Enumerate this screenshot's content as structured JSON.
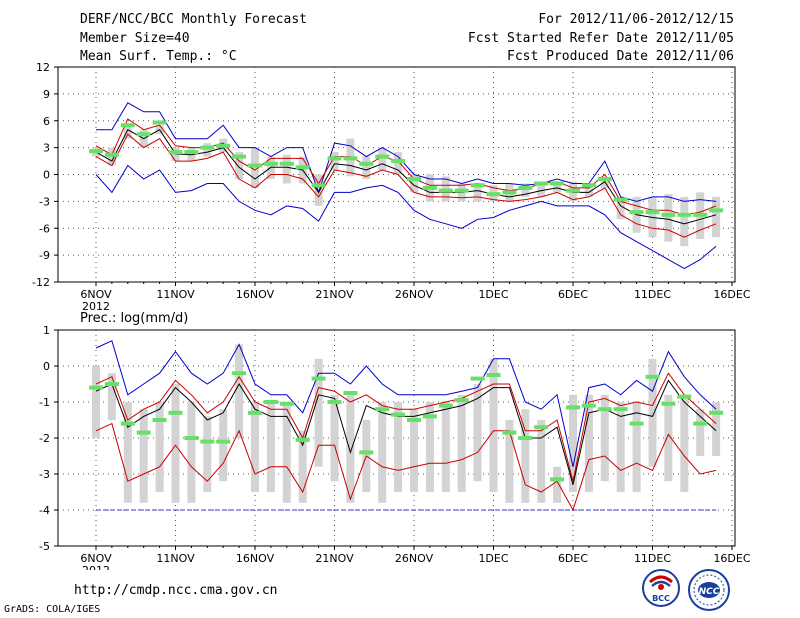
{
  "header": {
    "title": "DERF/NCC/BCC Monthly Forecast",
    "member_size": "Member Size=40",
    "variable": "Mean Surf. Temp.: °C",
    "period": "For 2012/11/06-2012/12/15",
    "fcst_started": "Fcst Started Refer Date 2012/11/05",
    "fcst_produced": "Fcst Produced Date 2012/11/06"
  },
  "colors": {
    "envelope": "#0000cc",
    "spread": "#cc0000",
    "mean": "#000000",
    "box": "#d3d3d3",
    "marker": "#66e066",
    "baseline": "#3333cc",
    "grid": "#555555"
  },
  "footer": {
    "url": "http://cmdp.ncc.cma.gov.cn",
    "credit": "GrADS: COLA/IGES",
    "logo_bcc": "BCC",
    "logo_ncc": "NCC"
  },
  "chart_data": [
    {
      "type": "line",
      "title": "Mean Surf. Temp.: °C",
      "ylim": [
        -12,
        12
      ],
      "yticks": [
        12,
        9,
        6,
        3,
        0,
        -3,
        -6,
        -9,
        -12
      ],
      "xticks": [
        "6NOV",
        "11NOV",
        "16NOV",
        "21NOV",
        "26NOV",
        "1DEC",
        "6DEC",
        "11DEC",
        "16DEC"
      ],
      "xtick_days": [
        0,
        5,
        10,
        15,
        20,
        25,
        30,
        35,
        40
      ],
      "year_label": "2012",
      "days": [
        0,
        1,
        2,
        3,
        4,
        5,
        6,
        7,
        8,
        9,
        10,
        11,
        12,
        13,
        14,
        15,
        16,
        17,
        18,
        19,
        20,
        21,
        22,
        23,
        24,
        25,
        26,
        27,
        28,
        29,
        30,
        31,
        32,
        33,
        34,
        35,
        36,
        37,
        38,
        39
      ],
      "series": [
        {
          "name": "max",
          "role": "envelope",
          "values": [
            5,
            5,
            8,
            7,
            7,
            4,
            4,
            4,
            5.5,
            3,
            3,
            2,
            3,
            3,
            -2,
            3.5,
            3.2,
            2,
            3,
            2,
            0,
            -0.5,
            -0.5,
            -1,
            -0.5,
            -1,
            -1,
            -1.2,
            -1,
            -0.5,
            -1,
            -1,
            1.5,
            -2.5,
            -3,
            -2.5,
            -2.5,
            -3,
            -2.8,
            -3
          ]
        },
        {
          "name": "upper",
          "role": "spread",
          "values": [
            3.2,
            2.2,
            6.2,
            5,
            5.5,
            3.2,
            3,
            3,
            3.5,
            1.5,
            0.5,
            1.8,
            1.8,
            1.8,
            -1,
            2,
            2,
            1,
            2,
            1.5,
            -0.5,
            -1.2,
            -1.2,
            -1.2,
            -1,
            -1.5,
            -1.8,
            -1.6,
            -1,
            -0.8,
            -1.5,
            -1.5,
            0,
            -3,
            -3.5,
            -4,
            -4,
            -4.5,
            -4.2,
            -3.5
          ]
        },
        {
          "name": "mean",
          "role": "mean",
          "values": [
            2.5,
            1.5,
            5,
            4,
            5,
            2.3,
            2.2,
            2.5,
            3,
            0.8,
            -0.5,
            0.8,
            0.8,
            0.5,
            -2,
            1.2,
            1,
            0.5,
            1.2,
            0.5,
            -1.2,
            -2,
            -2,
            -2,
            -1.8,
            -2.2,
            -2.5,
            -2.2,
            -1.8,
            -1.5,
            -2,
            -2,
            -0.8,
            -3.5,
            -4.5,
            -4.8,
            -5,
            -5.5,
            -5,
            -4.5
          ]
        },
        {
          "name": "lower",
          "role": "spread",
          "values": [
            2,
            1,
            4.5,
            3,
            4,
            1.5,
            1.5,
            1.8,
            2.5,
            -0.5,
            -1.5,
            0,
            0,
            -0.5,
            -2.5,
            0.5,
            0.2,
            -0.2,
            0.5,
            0,
            -2,
            -2.5,
            -2.5,
            -2.6,
            -2.5,
            -2.8,
            -3,
            -2.8,
            -2.5,
            -2,
            -2.8,
            -2.5,
            -1.5,
            -4.5,
            -5.5,
            -6,
            -6.2,
            -7,
            -6.2,
            -5.5
          ]
        },
        {
          "name": "min",
          "role": "envelope",
          "values": [
            0,
            -2,
            1,
            -0.5,
            0.5,
            -2,
            -1.8,
            -1,
            -1,
            -3,
            -4,
            -4.5,
            -3.5,
            -3.8,
            -5.2,
            -2,
            -2,
            -1.5,
            -1.2,
            -2,
            -4,
            -5,
            -5.5,
            -6,
            -5,
            -4.8,
            -4,
            -3.5,
            -3,
            -3.5,
            -3.5,
            -3.5,
            -4.5,
            -6.5,
            -7.5,
            -8.5,
            -9.5,
            -10.5,
            -9.5,
            -8
          ]
        },
        {
          "name": "median",
          "role": "marker",
          "values": [
            2.6,
            2.2,
            5.5,
            4.5,
            5.8,
            2.5,
            2.5,
            3,
            3.2,
            2,
            1,
            1.2,
            1.2,
            0.8,
            -1.2,
            1.8,
            1.8,
            1.2,
            2,
            1.5,
            -0.5,
            -1.5,
            -1.8,
            -1.8,
            -1.2,
            -2.2,
            -2,
            -1.5,
            -1,
            -1,
            -1.8,
            -1.2,
            -0.5,
            -2.8,
            -4.2,
            -4.2,
            -4.5,
            -4.5,
            -4.5,
            -4
          ]
        },
        {
          "name": "box_high",
          "role": "box",
          "values": [
            3,
            3,
            5.5,
            5,
            5.5,
            3,
            3,
            3.5,
            4,
            2.5,
            3,
            2,
            2.2,
            2,
            0,
            2.5,
            4,
            2,
            3,
            2.5,
            0,
            0,
            -0.2,
            -1,
            -1,
            -1.2,
            -1,
            -1,
            -0.8,
            -0.8,
            -0.8,
            -1,
            -0.5,
            -2.5,
            -2.5,
            -2.5,
            -2.2,
            -2.5,
            -2,
            -2.5
          ]
        },
        {
          "name": "box_low",
          "role": "box",
          "values": [
            2,
            1,
            4,
            3,
            4.5,
            1.5,
            1.5,
            2,
            2.5,
            -0.5,
            -1.5,
            -0.5,
            -1,
            -1,
            -3.5,
            0.5,
            -0.2,
            -0.5,
            0.5,
            0,
            -2,
            -3,
            -3,
            -3,
            -3,
            -3,
            -3,
            -2.5,
            -2.5,
            -2,
            -3,
            -2.5,
            -1.5,
            -5,
            -6.5,
            -7,
            -7.5,
            -8,
            -7.2,
            -7
          ]
        }
      ]
    },
    {
      "type": "line",
      "title": "Prec.: log(mm/d)",
      "ylim": [
        -5,
        1
      ],
      "yticks": [
        1,
        0,
        -1,
        -2,
        -3,
        -4,
        -5
      ],
      "xticks": [
        "6NOV",
        "11NOV",
        "16NOV",
        "21NOV",
        "26NOV",
        "1DEC",
        "6DEC",
        "11DEC",
        "16DEC"
      ],
      "xtick_days": [
        0,
        5,
        10,
        15,
        20,
        25,
        30,
        35,
        40
      ],
      "year_label": "2012",
      "days": [
        0,
        1,
        2,
        3,
        4,
        5,
        6,
        7,
        8,
        9,
        10,
        11,
        12,
        13,
        14,
        15,
        16,
        17,
        18,
        19,
        20,
        21,
        22,
        23,
        24,
        25,
        26,
        27,
        28,
        29,
        30,
        31,
        32,
        33,
        34,
        35,
        36,
        37,
        38,
        39
      ],
      "series": [
        {
          "name": "max",
          "role": "envelope",
          "values": [
            0.5,
            0.7,
            -0.8,
            -0.5,
            -0.2,
            0.4,
            -0.2,
            -0.5,
            -0.2,
            0.6,
            -0.5,
            -0.8,
            -0.8,
            -1.3,
            -0.2,
            -0.2,
            -0.5,
            0,
            -0.5,
            -0.8,
            -0.8,
            -0.8,
            -0.8,
            -0.7,
            -0.6,
            0.2,
            0.2,
            -1,
            -1.2,
            -0.8,
            -2.8,
            -0.6,
            -0.5,
            -0.8,
            -0.4,
            -0.7,
            0.4,
            -0.3,
            -0.8,
            -1.2
          ]
        },
        {
          "name": "upper",
          "role": "spread",
          "values": [
            -0.5,
            -0.3,
            -1.5,
            -1.2,
            -1,
            -0.4,
            -0.8,
            -1.3,
            -1,
            -0.3,
            -1,
            -1.2,
            -1.2,
            -2,
            -0.6,
            -0.7,
            -1,
            -0.8,
            -1.1,
            -1.2,
            -1.2,
            -1.1,
            -1,
            -0.9,
            -0.7,
            -0.5,
            -0.5,
            -1.8,
            -1.8,
            -1.5,
            -3.2,
            -1,
            -0.9,
            -1.1,
            -1.0,
            -1.1,
            -0.2,
            -0.8,
            -1.2,
            -1.6
          ]
        },
        {
          "name": "mean",
          "role": "mean",
          "values": [
            -0.7,
            -0.5,
            -1.7,
            -1.4,
            -1.2,
            -0.6,
            -1,
            -1.5,
            -1.3,
            -0.5,
            -1.2,
            -1.4,
            -1.4,
            -2.2,
            -0.8,
            -0.9,
            -2.4,
            -1.1,
            -1.3,
            -1.4,
            -1.4,
            -1.3,
            -1.2,
            -1.1,
            -0.9,
            -0.6,
            -0.6,
            -2,
            -2,
            -1.7,
            -3.3,
            -1.3,
            -1.2,
            -1.4,
            -1.3,
            -1.4,
            -0.4,
            -1.0,
            -1.4,
            -1.8
          ]
        },
        {
          "name": "lower",
          "role": "spread",
          "values": [
            -1.8,
            -1.6,
            -3.2,
            -3,
            -2.8,
            -2.2,
            -2.8,
            -3.2,
            -2.7,
            -1.8,
            -3,
            -2.8,
            -2.8,
            -3.5,
            -2.2,
            -2.2,
            -3.7,
            -2.5,
            -2.8,
            -2.9,
            -2.8,
            -2.7,
            -2.7,
            -2.6,
            -2.4,
            -1.8,
            -1.8,
            -3.3,
            -3.5,
            -3.2,
            -4,
            -2.6,
            -2.5,
            -2.9,
            -2.7,
            -2.9,
            -1.9,
            -2.5,
            -3.0,
            -2.9
          ]
        },
        {
          "name": "baseline",
          "role": "baseline",
          "values": [
            -4,
            -4,
            -4,
            -4,
            -4,
            -4,
            -4,
            -4,
            -4,
            -4,
            -4,
            -4,
            -4,
            -4,
            -4,
            -4,
            -4,
            -4,
            -4,
            -4,
            -4,
            -4,
            -4,
            -4,
            -4,
            -4,
            -4,
            -4,
            -4,
            -4,
            -4,
            -4,
            -4,
            -4,
            -4,
            -4,
            -4,
            -4,
            -4,
            -4
          ]
        },
        {
          "name": "median",
          "role": "marker",
          "values": [
            -0.6,
            -0.5,
            -1.6,
            -1.85,
            -1.5,
            -1.3,
            -2,
            -2.1,
            -2.1,
            -0.2,
            -1.3,
            -1,
            -1.05,
            -2.05,
            -0.35,
            -1.0,
            -0.75,
            -2.4,
            -1.2,
            -1.35,
            -1.5,
            -1.4,
            -1.1,
            -0.95,
            -0.35,
            -0.25,
            -1.85,
            -2.0,
            -1.7,
            -3.15,
            -1.15,
            -1.1,
            -1.2,
            -1.2,
            -1.6,
            -0.3,
            -1.05,
            -0.85,
            -1.6,
            -1.3
          ]
        },
        {
          "name": "box_high",
          "role": "box",
          "values": [
            0,
            -0.2,
            -1,
            -1.2,
            -1,
            -0.5,
            -1,
            -1.4,
            -1.2,
            0.6,
            -1,
            -1,
            -1,
            -1.8,
            0.2,
            -0.8,
            -0.8,
            -1.5,
            -1,
            -1,
            -1.2,
            -1,
            -1,
            -0.8,
            -0.5,
            0.2,
            -1.5,
            -1.2,
            -1.5,
            -2.8,
            -0.8,
            -0.8,
            -0.8,
            -1,
            -1,
            0.2,
            -0.8,
            -0.8,
            -1.2,
            -1
          ]
        },
        {
          "name": "box_low",
          "role": "box",
          "values": [
            -2,
            -1.5,
            -3.8,
            -3.8,
            -3.5,
            -3.8,
            -3.8,
            -3.5,
            -3.2,
            -2,
            -3.5,
            -3.5,
            -3.8,
            -3.8,
            -2.8,
            -3.2,
            -3.8,
            -3.5,
            -3.8,
            -3.5,
            -3.5,
            -3.5,
            -3.5,
            -3.5,
            -3.2,
            -3.5,
            -3.8,
            -3.8,
            -3.8,
            -3.8,
            -3.5,
            -3.5,
            -3.2,
            -3.5,
            -3.5,
            -2.8,
            -3.2,
            -3.5,
            -2.5,
            -2.5
          ]
        }
      ]
    }
  ]
}
